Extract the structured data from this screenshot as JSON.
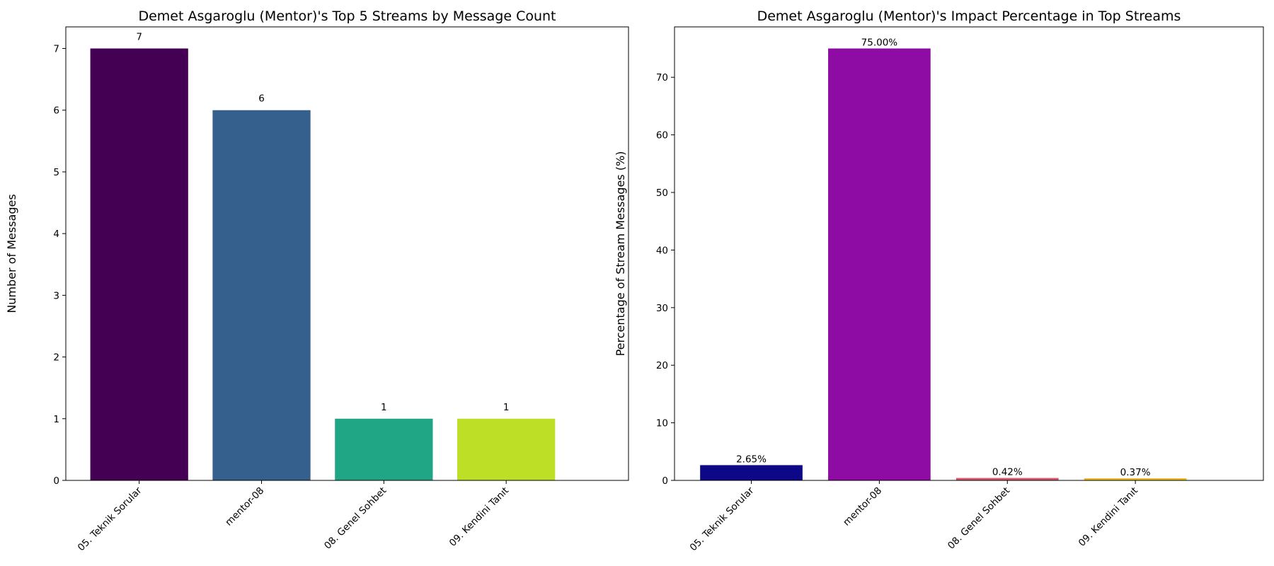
{
  "chart_data": [
    {
      "type": "bar",
      "title": "Demet Asgaroglu (Mentor)'s Top 5 Streams by Message Count",
      "xlabel": "",
      "ylabel": "Number of Messages",
      "categories": [
        "05. Teknik Sorular",
        "mentor-08",
        "08. Genel Sohbet",
        "09. Kendini Tanıt"
      ],
      "values": [
        7,
        6,
        1,
        1
      ],
      "value_labels": [
        "7",
        "6",
        "1",
        "1"
      ],
      "colors": [
        "#440154",
        "#355f8d",
        "#21a685",
        "#bddf26"
      ],
      "ylim": [
        0,
        7.35
      ],
      "yticks": [
        0,
        1,
        2,
        3,
        4,
        5,
        6,
        7
      ],
      "grid": false
    },
    {
      "type": "bar",
      "title": "Demet Asgaroglu (Mentor)'s Impact Percentage in Top Streams",
      "xlabel": "",
      "ylabel": "Percentage of Stream Messages (%)",
      "categories": [
        "05. Teknik Sorular",
        "mentor-08",
        "08. Genel Sohbet",
        "09. Kendini Tanıt"
      ],
      "values": [
        2.65,
        75.0,
        0.42,
        0.37
      ],
      "value_labels": [
        "2.65%",
        "75.00%",
        "0.42%",
        "0.37%"
      ],
      "colors": [
        "#0d0887",
        "#8e0ca4",
        "#d8576b",
        "#f0b82a"
      ],
      "ylim": [
        0,
        78.75
      ],
      "yticks": [
        0,
        10,
        20,
        30,
        40,
        50,
        60,
        70
      ],
      "grid": false
    }
  ]
}
